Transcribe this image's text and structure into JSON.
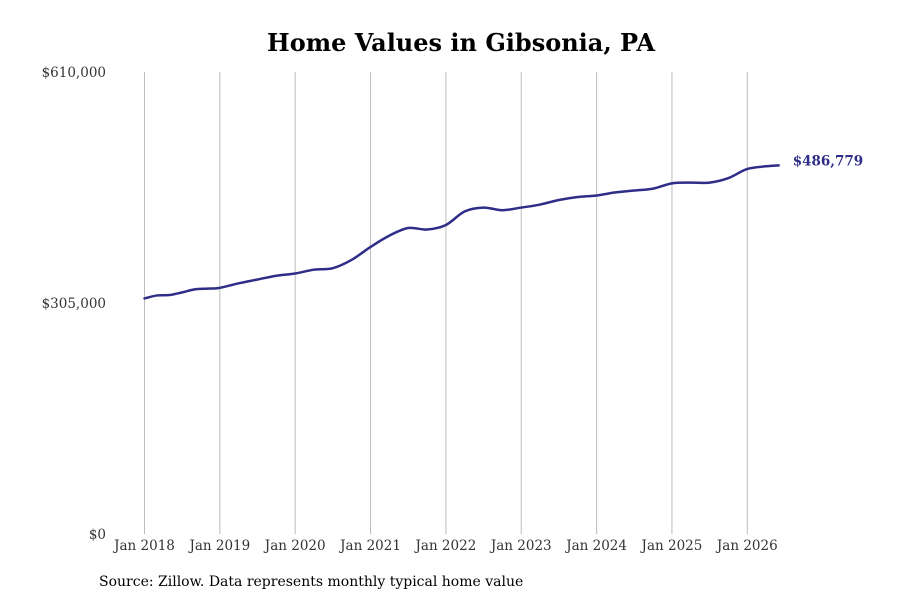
{
  "chart_data": {
    "type": "line",
    "title": "Home Values in Gibsonia, PA",
    "xlabel": "",
    "ylabel": "",
    "ylim": [
      0,
      610000
    ],
    "y_ticks": [
      {
        "value": 0,
        "label": "$0"
      },
      {
        "value": 305000,
        "label": "$305,000"
      },
      {
        "value": 610000,
        "label": "$610,000"
      }
    ],
    "x_ticks": [
      {
        "year": 2018,
        "label": "Jan 2018"
      },
      {
        "year": 2019,
        "label": "Jan 2019"
      },
      {
        "year": 2020,
        "label": "Jan 2020"
      },
      {
        "year": 2021,
        "label": "Jan 2021"
      },
      {
        "year": 2022,
        "label": "Jan 2022"
      },
      {
        "year": 2023,
        "label": "Jan 2023"
      },
      {
        "year": 2024,
        "label": "Jan 2024"
      },
      {
        "year": 2025,
        "label": "Jan 2025"
      },
      {
        "year": 2026,
        "label": "Jan 2026"
      }
    ],
    "grid": "vertical",
    "line_color": "#2e2d88",
    "end_label": "$486,779",
    "series": [
      {
        "values": [
          {
            "date": "2018-01",
            "value": 311000
          },
          {
            "date": "2018-03",
            "value": 315000
          },
          {
            "date": "2018-05",
            "value": 315500
          },
          {
            "date": "2018-07",
            "value": 319000
          },
          {
            "date": "2018-09",
            "value": 323000
          },
          {
            "date": "2018-11",
            "value": 324000
          },
          {
            "date": "2019-01",
            "value": 325000
          },
          {
            "date": "2019-04",
            "value": 331000
          },
          {
            "date": "2019-07",
            "value": 336000
          },
          {
            "date": "2019-10",
            "value": 341000
          },
          {
            "date": "2020-01",
            "value": 344000
          },
          {
            "date": "2020-04",
            "value": 349000
          },
          {
            "date": "2020-07",
            "value": 351000
          },
          {
            "date": "2020-10",
            "value": 362000
          },
          {
            "date": "2021-01",
            "value": 379000
          },
          {
            "date": "2021-04",
            "value": 394000
          },
          {
            "date": "2021-07",
            "value": 404000
          },
          {
            "date": "2021-10",
            "value": 402000
          },
          {
            "date": "2022-01",
            "value": 408000
          },
          {
            "date": "2022-04",
            "value": 426000
          },
          {
            "date": "2022-07",
            "value": 431000
          },
          {
            "date": "2022-10",
            "value": 427500
          },
          {
            "date": "2023-01",
            "value": 431000
          },
          {
            "date": "2023-04",
            "value": 435000
          },
          {
            "date": "2023-07",
            "value": 441000
          },
          {
            "date": "2023-10",
            "value": 445000
          },
          {
            "date": "2024-01",
            "value": 447000
          },
          {
            "date": "2024-04",
            "value": 451000
          },
          {
            "date": "2024-07",
            "value": 453500
          },
          {
            "date": "2024-10",
            "value": 456000
          },
          {
            "date": "2025-01",
            "value": 463000
          },
          {
            "date": "2025-04",
            "value": 464000
          },
          {
            "date": "2025-07",
            "value": 464000
          },
          {
            "date": "2025-10",
            "value": 470000
          },
          {
            "date": "2026-01",
            "value": 482000
          },
          {
            "date": "2026-04",
            "value": 485500
          },
          {
            "date": "2026-06",
            "value": 486779
          }
        ]
      }
    ]
  },
  "footer": {
    "source": "Source: Zillow. Data represents monthly typical home value"
  }
}
